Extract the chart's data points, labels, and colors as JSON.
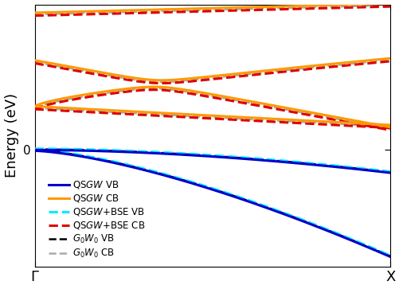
{
  "ylabel": "Energy (eV)",
  "xlabel_left": "Γ",
  "xlabel_right": "X",
  "ylim": [
    -2.8,
    3.5
  ],
  "xlim": [
    0.0,
    1.0
  ],
  "yticks": [
    0
  ],
  "legend": {
    "QSGW VB": {
      "color": "#0000cc",
      "linestyle": "solid",
      "linewidth": 2.2
    },
    "QSGW CB": {
      "color": "#ff9900",
      "linestyle": "solid",
      "linewidth": 2.5
    },
    "QSGW+BSE VB": {
      "color": "#00eeff",
      "linestyle": "dashed",
      "linewidth": 2.2
    },
    "QSGW+BSE CB": {
      "color": "#dd0000",
      "linestyle": "dashed",
      "linewidth": 2.2
    },
    "G0W0 VB": {
      "color": "#000000",
      "linestyle": "dashed",
      "linewidth": 1.8
    },
    "G0W0 CB": {
      "color": "#aaaaaa",
      "linestyle": "dashed",
      "linewidth": 1.8
    }
  },
  "bse_vb_shift": 0.03,
  "bse_cb_shift": -0.07,
  "g0w0_vb_shift": 0.015,
  "g0w0_cb_shift": -0.04
}
